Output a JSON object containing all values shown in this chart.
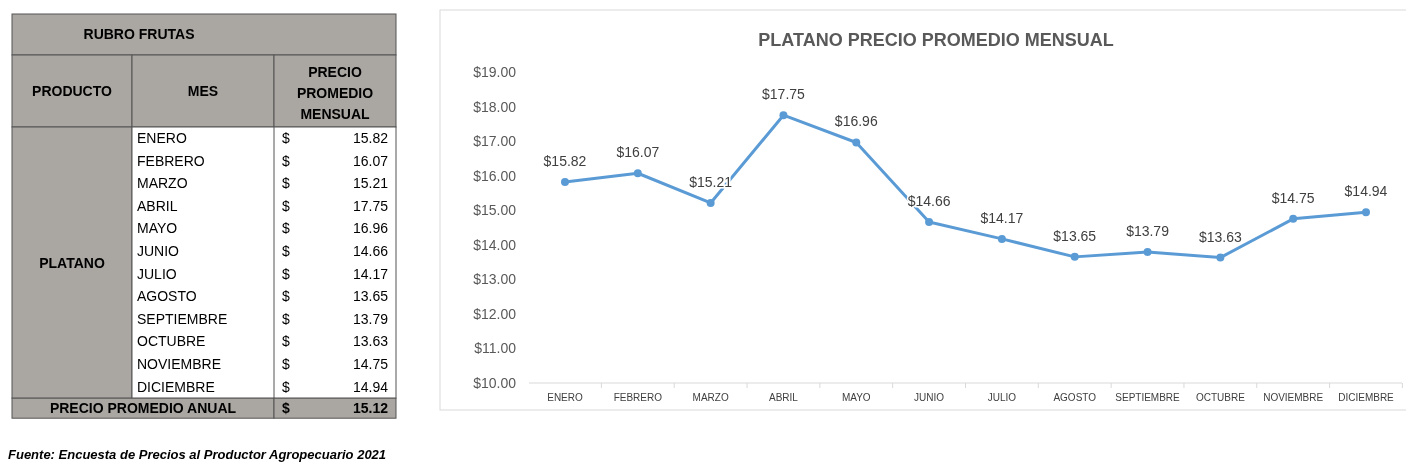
{
  "chart_data": [
    {
      "type": "other",
      "title": "RUBRO FRUTAS",
      "annotations": [
        "PRODUCTO",
        "MES",
        "PRECIO PROMEDIO MENSUAL",
        "PLATANO",
        "PRECIO PROMEDIO ANUAL",
        "$",
        "15.12"
      ],
      "categories": [
        "ENERO",
        "FEBRERO",
        "MARZO",
        "ABRIL",
        "MAYO",
        "JUNIO",
        "JULIO",
        "AGOSTO",
        "SEPTIEMBRE",
        "OCTUBRE",
        "NOVIEMBRE",
        "DICIEMBRE"
      ],
      "values": [
        15.82,
        16.07,
        15.21,
        17.75,
        16.96,
        14.66,
        14.17,
        13.65,
        13.79,
        13.63,
        14.75,
        14.94
      ],
      "value_labels": [
        "15.82",
        "16.07",
        "15.21",
        "17.75",
        "16.96",
        "14.66",
        "14.17",
        "13.65",
        "13.79",
        "13.63",
        "14.75",
        "14.94"
      ]
    },
    {
      "type": "line",
      "title": "PLATANO PRECIO PROMEDIO MENSUAL",
      "color": "#5b9bd5",
      "marker": "circle",
      "categories": [
        "ENERO",
        "FEBRERO",
        "MARZO",
        "ABRIL",
        "MAYO",
        "JUNIO",
        "JULIO",
        "AGOSTO",
        "SEPTIEMBRE",
        "OCTUBRE",
        "NOVIEMBRE",
        "DICIEMBRE"
      ],
      "values": [
        15.82,
        16.07,
        15.21,
        17.75,
        16.96,
        14.66,
        14.17,
        13.65,
        13.79,
        13.63,
        14.75,
        14.94
      ],
      "value_labels": [
        "$15.82",
        "$16.07",
        "$15.21",
        "$17.75",
        "$16.96",
        "$14.66",
        "$14.17",
        "$13.65",
        "$13.79",
        "$13.63",
        "$14.75",
        "$14.94"
      ],
      "ylim": [
        10,
        19
      ],
      "yticks": [
        {
          "value": 10,
          "label": "$10.00"
        },
        {
          "value": 11,
          "label": "$11.00"
        },
        {
          "value": 12,
          "label": "$12.00"
        },
        {
          "value": 13,
          "label": "$13.00"
        },
        {
          "value": 14,
          "label": "$14.00"
        },
        {
          "value": 15,
          "label": "$15.00"
        },
        {
          "value": 16,
          "label": "$16.00"
        },
        {
          "value": 17,
          "label": "$17.00"
        },
        {
          "value": 18,
          "label": "$18.00"
        },
        {
          "value": 19,
          "label": "$19.00"
        }
      ],
      "annotations": [
        "Fuente: Encuesta de Precios al Productor Agropecuario 2021"
      ]
    }
  ]
}
